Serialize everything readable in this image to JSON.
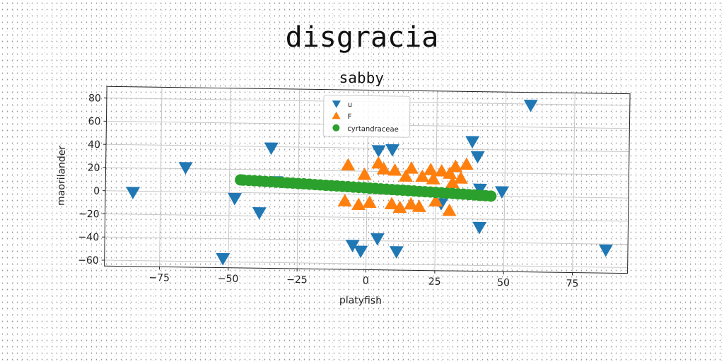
{
  "figure_title": "disgracia",
  "chart_data": {
    "type": "scatter",
    "title": "sabby",
    "xlabel": "platyfish",
    "ylabel": "maorilander",
    "xlim": [
      -95,
      95
    ],
    "ylim": [
      -65,
      90
    ],
    "xticks": [
      -75,
      -50,
      -25,
      0,
      25,
      50,
      75
    ],
    "yticks": [
      -60,
      -40,
      -20,
      0,
      20,
      40,
      60,
      80
    ],
    "grid": true,
    "legend_position": "top-center",
    "series": [
      {
        "name": "u",
        "marker": "triangle-down",
        "color": "#1f77b4",
        "x": [
          -85,
          -66,
          -52,
          -48,
          -39,
          -35,
          -33,
          -5,
          -2,
          4,
          4,
          9,
          11,
          27,
          38,
          40,
          41,
          41,
          49,
          59,
          87
        ],
        "y": [
          -1,
          21,
          -57,
          -5,
          -17,
          39,
          10,
          -44,
          -49,
          -38,
          38,
          39,
          -49,
          -7,
          47,
          34,
          6,
          -27,
          4,
          79,
          -45
        ]
      },
      {
        "name": "F",
        "marker": "triangle-up",
        "color": "#ff7f0e",
        "x": [
          -7,
          -8,
          -3,
          -1,
          1,
          4,
          6,
          9,
          10,
          12,
          14,
          16,
          16,
          19,
          20,
          23,
          24,
          25,
          27,
          30,
          30,
          31,
          32,
          34,
          36
        ],
        "y": [
          25,
          -6,
          -9,
          17,
          -7,
          27,
          22,
          -8,
          21,
          -11,
          16,
          23,
          -8,
          -10,
          16,
          22,
          14,
          -5,
          21,
          -13,
          19,
          11,
          25,
          15,
          27
        ]
      },
      {
        "name": "cyrtandraceae",
        "marker": "circle",
        "color": "#2ca02c",
        "x": [
          -46,
          -45,
          -43,
          -41,
          -39,
          -37,
          -35,
          -33,
          -31,
          -29,
          -27,
          -25,
          -23,
          -21,
          -19,
          -17,
          -15,
          -13,
          -11,
          -9,
          -7,
          -5,
          -3,
          -1,
          1,
          3,
          5,
          7,
          9,
          11,
          13,
          15,
          17,
          19,
          21,
          23,
          25,
          27,
          29,
          31,
          33,
          35,
          37,
          39,
          41,
          43,
          45
        ],
        "y": [
          11,
          10.8,
          10.6,
          10.4,
          10.2,
          9.9,
          9.7,
          9.5,
          9.2,
          9.0,
          8.8,
          8.5,
          8.3,
          8.1,
          7.8,
          7.6,
          7.3,
          7.1,
          6.9,
          6.6,
          6.4,
          6.1,
          5.9,
          5.7,
          5.4,
          5.2,
          4.9,
          4.7,
          4.4,
          4.2,
          4.0,
          3.7,
          3.5,
          3.2,
          3.0,
          2.8,
          2.5,
          2.3,
          2.0,
          1.8,
          1.5,
          1.3,
          1.0,
          0.8,
          0.5,
          0.3,
          0.0
        ]
      }
    ]
  }
}
